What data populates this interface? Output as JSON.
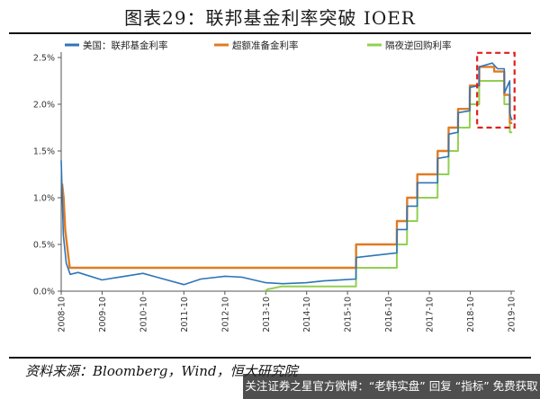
{
  "title": "图表29：联邦基金利率突破 IOER",
  "source": "资料来源：Bloomberg，Wind，恒大研究院",
  "footer": "关注证券之星官方微博：“老韩实盘” 回复 “指标” 免费获取",
  "colors": {
    "fed_funds": "#2e75b6",
    "ioer": "#e07b24",
    "rrp": "#92d050",
    "highlight_box": "#e0201b",
    "axis": "#555555"
  },
  "chart_data": {
    "type": "line",
    "title": "联邦基金利率突破 IOER",
    "xlabel": "",
    "ylabel": "",
    "x_ticks": [
      "2008-10",
      "2009-10",
      "2010-10",
      "2011-10",
      "2012-10",
      "2013-10",
      "2014-10",
      "2015-10",
      "2016-10",
      "2017-10",
      "2018-10",
      "2019-10"
    ],
    "y_ticks": [
      "0.0%",
      "0.5%",
      "1.0%",
      "1.5%",
      "2.0%",
      "2.5%"
    ],
    "xlim": [
      "2008-10",
      "2019-10"
    ],
    "ylim": [
      0,
      2.5
    ],
    "y_unit": "%",
    "grid": false,
    "legend_position": "top",
    "series": [
      {
        "name": "美国：联邦基金利率",
        "color": "#2e75b6",
        "points": [
          [
            "2008-10-01",
            1.4
          ],
          [
            "2008-10-20",
            0.6
          ],
          [
            "2008-11-15",
            0.3
          ],
          [
            "2008-12-20",
            0.18
          ],
          [
            "2009-03-01",
            0.2
          ],
          [
            "2009-10-01",
            0.12
          ],
          [
            "2010-03-01",
            0.15
          ],
          [
            "2010-10-01",
            0.19
          ],
          [
            "2011-03-01",
            0.14
          ],
          [
            "2011-10-01",
            0.07
          ],
          [
            "2012-03-01",
            0.13
          ],
          [
            "2012-10-01",
            0.16
          ],
          [
            "2013-03-01",
            0.15
          ],
          [
            "2013-10-01",
            0.09
          ],
          [
            "2014-03-01",
            0.08
          ],
          [
            "2014-10-01",
            0.09
          ],
          [
            "2015-03-01",
            0.11
          ],
          [
            "2015-12-15",
            0.13
          ],
          [
            "2015-12-17",
            0.36
          ],
          [
            "2016-10-01",
            0.4
          ],
          [
            "2016-12-15",
            0.41
          ],
          [
            "2016-12-16",
            0.66
          ],
          [
            "2017-03-15",
            0.66
          ],
          [
            "2017-03-16",
            0.91
          ],
          [
            "2017-06-14",
            0.91
          ],
          [
            "2017-06-15",
            1.16
          ],
          [
            "2017-12-13",
            1.16
          ],
          [
            "2017-12-14",
            1.42
          ],
          [
            "2018-03-21",
            1.44
          ],
          [
            "2018-03-22",
            1.68
          ],
          [
            "2018-06-13",
            1.7
          ],
          [
            "2018-06-14",
            1.91
          ],
          [
            "2018-09-26",
            1.93
          ],
          [
            "2018-09-27",
            2.18
          ],
          [
            "2018-12-19",
            2.2
          ],
          [
            "2018-12-20",
            2.4
          ],
          [
            "2019-04-15",
            2.44
          ],
          [
            "2019-06-01",
            2.38
          ],
          [
            "2019-07-31",
            2.38
          ],
          [
            "2019-08-01",
            2.12
          ],
          [
            "2019-09-18",
            2.25
          ],
          [
            "2019-09-19",
            1.9
          ],
          [
            "2019-10-01",
            1.85
          ],
          [
            "2019-10-10",
            1.83
          ]
        ]
      },
      {
        "name": "超额准备金利率",
        "color": "#e07b24",
        "points": [
          [
            "2008-10-09",
            1.15
          ],
          [
            "2008-10-23",
            1.0
          ],
          [
            "2008-11-06",
            0.65
          ],
          [
            "2008-12-16",
            0.25
          ],
          [
            "2015-12-16",
            0.25
          ],
          [
            "2015-12-17",
            0.5
          ],
          [
            "2016-12-14",
            0.5
          ],
          [
            "2016-12-15",
            0.75
          ],
          [
            "2017-03-15",
            0.75
          ],
          [
            "2017-03-16",
            1.0
          ],
          [
            "2017-06-14",
            1.0
          ],
          [
            "2017-06-15",
            1.25
          ],
          [
            "2017-12-13",
            1.25
          ],
          [
            "2017-12-14",
            1.5
          ],
          [
            "2018-03-21",
            1.5
          ],
          [
            "2018-03-22",
            1.75
          ],
          [
            "2018-06-13",
            1.75
          ],
          [
            "2018-06-14",
            1.95
          ],
          [
            "2018-09-26",
            1.95
          ],
          [
            "2018-09-27",
            2.2
          ],
          [
            "2018-12-19",
            2.2
          ],
          [
            "2018-12-20",
            2.4
          ],
          [
            "2019-05-01",
            2.4
          ],
          [
            "2019-05-02",
            2.35
          ],
          [
            "2019-07-31",
            2.35
          ],
          [
            "2019-08-01",
            2.1
          ],
          [
            "2019-09-18",
            2.1
          ],
          [
            "2019-09-19",
            1.8
          ],
          [
            "2019-10-10",
            1.8
          ]
        ]
      },
      {
        "name": "隔夜逆回购利率",
        "color": "#92d050",
        "points": [
          [
            "2013-09-23",
            0.0
          ],
          [
            "2013-10-20",
            0.02
          ],
          [
            "2013-12-01",
            0.03
          ],
          [
            "2014-02-15",
            0.05
          ],
          [
            "2014-07-01",
            0.05
          ],
          [
            "2014-10-01",
            0.05
          ],
          [
            "2015-12-16",
            0.05
          ],
          [
            "2015-12-17",
            0.25
          ],
          [
            "2016-12-14",
            0.25
          ],
          [
            "2016-12-15",
            0.5
          ],
          [
            "2017-03-15",
            0.5
          ],
          [
            "2017-03-16",
            0.75
          ],
          [
            "2017-06-14",
            0.75
          ],
          [
            "2017-06-15",
            1.0
          ],
          [
            "2017-12-13",
            1.0
          ],
          [
            "2017-12-14",
            1.25
          ],
          [
            "2018-03-21",
            1.25
          ],
          [
            "2018-03-22",
            1.5
          ],
          [
            "2018-06-13",
            1.5
          ],
          [
            "2018-06-14",
            1.75
          ],
          [
            "2018-09-26",
            1.75
          ],
          [
            "2018-09-27",
            2.0
          ],
          [
            "2018-12-19",
            2.0
          ],
          [
            "2018-12-20",
            2.25
          ],
          [
            "2019-07-31",
            2.25
          ],
          [
            "2019-08-01",
            2.0
          ],
          [
            "2019-09-18",
            2.0
          ],
          [
            "2019-09-19",
            1.7
          ],
          [
            "2019-10-10",
            1.7
          ]
        ]
      }
    ],
    "annotations": [
      {
        "type": "dashed-box",
        "color": "#e0201b",
        "x_range": [
          "2018-12-01",
          "2019-10-31"
        ],
        "y_range": [
          1.75,
          2.55
        ]
      }
    ]
  }
}
